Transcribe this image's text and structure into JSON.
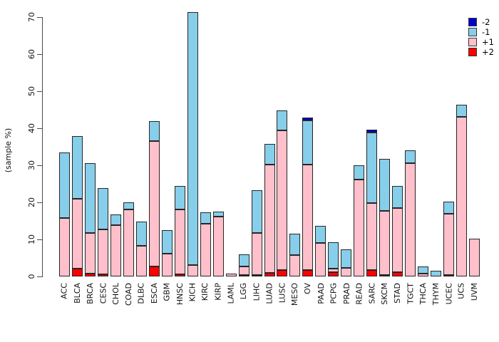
{
  "chart_data": {
    "type": "bar",
    "stacked": true,
    "title": "",
    "xlabel": "",
    "ylabel": "(sample %)",
    "ylim": [
      0,
      70
    ],
    "yticks": [
      0,
      10,
      20,
      30,
      40,
      50,
      60,
      70
    ],
    "grid": false,
    "legend_position": "top-right",
    "stack_order_bottom_to_top": [
      "+2",
      "+1",
      "-1",
      "-2"
    ],
    "legend": [
      {
        "label": "-2",
        "color": "#0000CD"
      },
      {
        "label": "-1",
        "color": "#87CEEB"
      },
      {
        "label": "+1",
        "color": "#FFC0CB"
      },
      {
        "label": "+2",
        "color": "#FF0000"
      }
    ],
    "categories": [
      "ACC",
      "BLCA",
      "BRCA",
      "CESC",
      "CHOL",
      "COAD",
      "DLBC",
      "ESCA",
      "GBM",
      "HNSC",
      "KICH",
      "KIRC",
      "KIRP",
      "LAML",
      "LGG",
      "LIHC",
      "LUAD",
      "LUSC",
      "MESO",
      "OV",
      "PAAD",
      "PCPG",
      "PRAD",
      "READ",
      "SARC",
      "SKCM",
      "STAD",
      "TGCT",
      "THCA",
      "THYM",
      "UCEC",
      "UCS",
      "UVM"
    ],
    "series": [
      {
        "name": "+2",
        "color": "#FF0000",
        "values": [
          0,
          2.2,
          0.7,
          0.6,
          0,
          0,
          0,
          2.7,
          0,
          0.6,
          0,
          0,
          0,
          0,
          0.3,
          0.3,
          0.9,
          1.7,
          0,
          1.7,
          0,
          1.1,
          0,
          0,
          1.7,
          0.3,
          1.1,
          0,
          0,
          0,
          0.2,
          0,
          0
        ]
      },
      {
        "name": "+1",
        "color": "#FFC0CB",
        "values": [
          15.7,
          18.8,
          11.0,
          12.1,
          13.9,
          18.0,
          8.2,
          33.8,
          6.1,
          17.4,
          3.0,
          14.3,
          16.2,
          0.7,
          2.3,
          11.4,
          29.3,
          37.8,
          5.8,
          28.5,
          9.1,
          1.0,
          2.4,
          26.1,
          18.1,
          17.3,
          17.3,
          30.6,
          0.8,
          0,
          16.6,
          43.1,
          10.1
        ]
      },
      {
        "name": "-1",
        "color": "#87CEEB",
        "values": [
          17.8,
          16.8,
          18.8,
          11.1,
          2.9,
          2.1,
          6.7,
          5.5,
          6.4,
          6.5,
          68.4,
          3.0,
          1.3,
          0,
          3.3,
          11.4,
          5.5,
          5.4,
          5.7,
          11.9,
          4.5,
          7.2,
          5.0,
          3.9,
          19.0,
          14.1,
          6.1,
          3.5,
          1.8,
          1.5,
          3.2,
          3.3,
          0
        ]
      },
      {
        "name": "-2",
        "color": "#0000CD",
        "values": [
          0,
          0,
          0,
          0,
          0,
          0,
          0,
          0,
          0,
          0,
          0,
          0,
          0,
          0,
          0,
          0,
          0,
          0,
          0,
          0.8,
          0,
          0,
          0,
          0,
          0.9,
          0,
          0,
          0,
          0,
          0,
          0,
          0,
          0
        ]
      }
    ],
    "totals": [
      33.5,
      37.8,
      30.5,
      23.8,
      16.8,
      20.1,
      14.9,
      42.0,
      12.5,
      24.5,
      71.4,
      17.3,
      17.5,
      0.7,
      5.9,
      23.1,
      35.7,
      44.9,
      11.5,
      42.9,
      13.6,
      9.3,
      7.4,
      30.0,
      39.7,
      31.7,
      24.5,
      34.1,
      2.6,
      1.5,
      20.0,
      46.4,
      10.1
    ]
  }
}
